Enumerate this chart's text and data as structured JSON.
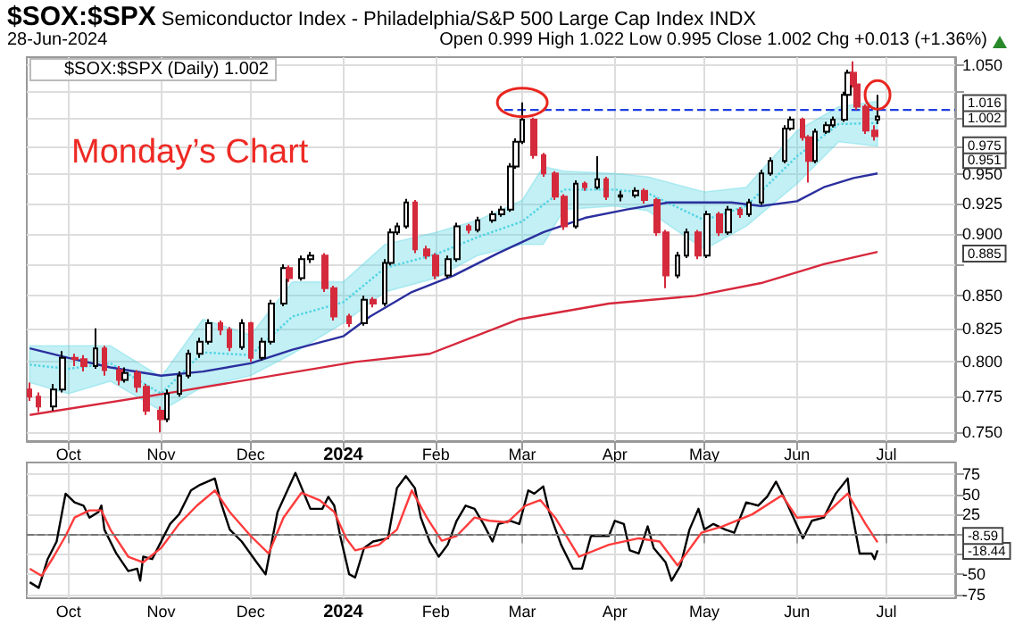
{
  "chart_data": [
    {
      "type": "candlestick",
      "title": "$SOX:$SPX Semiconductor Index - Philadelphia/S&P 500 Large Cap Index INDX",
      "annotations": [
        "28-Jun-2024",
        "Open 0.999 High 1.022 Low 0.995 Close 1.002 Chg +0.013 (+1.36%)",
        "Monday’s Chart",
        "1.016",
        "1.002",
        "0.975",
        "0.951",
        "0.885"
      ],
      "series": [
        {
          "name": "$SOX:$SPX (Daily) 1.002",
          "type": "candlestick",
          "x": [
            "2023-09-18",
            "2023-09-21",
            "2023-09-26",
            "2023-09-29",
            "2023-10-03",
            "2023-10-06",
            "2023-10-10",
            "2023-10-13",
            "2023-10-18",
            "2023-10-20",
            "2023-10-24",
            "2023-10-27",
            "2023-11-01",
            "2023-11-03",
            "2023-11-07",
            "2023-11-10",
            "2023-11-14",
            "2023-11-17",
            "2023-11-21",
            "2023-11-24",
            "2023-11-28",
            "2023-12-01",
            "2023-12-05",
            "2023-12-08",
            "2023-12-12",
            "2023-12-14",
            "2023-12-18",
            "2023-12-21",
            "2023-12-26",
            "2023-12-29",
            "2024-01-03",
            "2024-01-08",
            "2024-01-11",
            "2024-01-15",
            "2024-01-17",
            "2024-01-19",
            "2024-01-22",
            "2024-01-25",
            "2024-01-29",
            "2024-02-01",
            "2024-02-05",
            "2024-02-08",
            "2024-02-12",
            "2024-02-15",
            "2024-02-20",
            "2024-02-23",
            "2024-02-26",
            "2024-02-28",
            "2024-03-01",
            "2024-03-05",
            "2024-03-08",
            "2024-03-12",
            "2024-03-15",
            "2024-03-19",
            "2024-03-22",
            "2024-03-26",
            "2024-03-29",
            "2024-04-03",
            "2024-04-08",
            "2024-04-11",
            "2024-04-15",
            "2024-04-18",
            "2024-04-22",
            "2024-04-25",
            "2024-04-29",
            "2024-05-02",
            "2024-05-06",
            "2024-05-09",
            "2024-05-13",
            "2024-05-16",
            "2024-05-20",
            "2024-05-23",
            "2024-05-28",
            "2024-05-30",
            "2024-06-03",
            "2024-06-05",
            "2024-06-07",
            "2024-06-11",
            "2024-06-13",
            "2024-06-17",
            "2024-06-18",
            "2024-06-20",
            "2024-06-21",
            "2024-06-24",
            "2024-06-27",
            "2024-06-28"
          ],
          "ohlc": [
            [
              0.78,
              0.785,
              0.772,
              0.775
            ],
            [
              0.775,
              0.778,
              0.764,
              0.768
            ],
            [
              0.768,
              0.784,
              0.765,
              0.78
            ],
            [
              0.78,
              0.808,
              0.778,
              0.803
            ],
            [
              0.803,
              0.806,
              0.797,
              0.802
            ],
            [
              0.802,
              0.805,
              0.793,
              0.797
            ],
            [
              0.797,
              0.825,
              0.795,
              0.81
            ],
            [
              0.81,
              0.812,
              0.79,
              0.794
            ],
            [
              0.794,
              0.797,
              0.783,
              0.787
            ],
            [
              0.787,
              0.796,
              0.785,
              0.792
            ],
            [
              0.792,
              0.794,
              0.778,
              0.782
            ],
            [
              0.782,
              0.784,
              0.762,
              0.765
            ],
            [
              0.765,
              0.768,
              0.75,
              0.759
            ],
            [
              0.759,
              0.78,
              0.757,
              0.777
            ],
            [
              0.777,
              0.793,
              0.775,
              0.79
            ],
            [
              0.79,
              0.809,
              0.788,
              0.806
            ],
            [
              0.806,
              0.818,
              0.803,
              0.815
            ],
            [
              0.815,
              0.832,
              0.813,
              0.829
            ],
            [
              0.829,
              0.831,
              0.82,
              0.824
            ],
            [
              0.824,
              0.826,
              0.808,
              0.811
            ],
            [
              0.811,
              0.832,
              0.809,
              0.829
            ],
            [
              0.829,
              0.83,
              0.8,
              0.803
            ],
            [
              0.803,
              0.818,
              0.801,
              0.815
            ],
            [
              0.815,
              0.847,
              0.813,
              0.844
            ],
            [
              0.844,
              0.875,
              0.842,
              0.872
            ],
            [
              0.872,
              0.874,
              0.861,
              0.864
            ],
            [
              0.864,
              0.882,
              0.862,
              0.879
            ],
            [
              0.879,
              0.885,
              0.876,
              0.882
            ],
            [
              0.882,
              0.884,
              0.853,
              0.856
            ],
            [
              0.856,
              0.858,
              0.831,
              0.834
            ],
            [
              0.834,
              0.836,
              0.826,
              0.829
            ],
            [
              0.829,
              0.85,
              0.827,
              0.847
            ],
            [
              0.847,
              0.849,
              0.841,
              0.844
            ],
            [
              0.844,
              0.879,
              0.842,
              0.876
            ],
            [
              0.876,
              0.904,
              0.874,
              0.901
            ],
            [
              0.901,
              0.909,
              0.899,
              0.906
            ],
            [
              0.906,
              0.929,
              0.904,
              0.926
            ],
            [
              0.926,
              0.928,
              0.884,
              0.887
            ],
            [
              0.887,
              0.89,
              0.879,
              0.882
            ],
            [
              0.882,
              0.884,
              0.863,
              0.866
            ],
            [
              0.866,
              0.882,
              0.864,
              0.879
            ],
            [
              0.879,
              0.909,
              0.877,
              0.906
            ],
            [
              0.906,
              0.908,
              0.9,
              0.903
            ],
            [
              0.903,
              0.914,
              0.901,
              0.911
            ],
            [
              0.911,
              0.919,
              0.909,
              0.916
            ],
            [
              0.916,
              0.923,
              0.914,
              0.92
            ],
            [
              0.92,
              0.96,
              0.918,
              0.957
            ],
            [
              0.957,
              0.982,
              0.955,
              0.979
            ],
            [
              0.979,
              1.015,
              0.977,
              0.999
            ],
            [
              0.999,
              1.001,
              0.964,
              0.967
            ],
            [
              0.967,
              0.969,
              0.948,
              0.951
            ],
            [
              0.951,
              0.953,
              0.928,
              0.931
            ],
            [
              0.931,
              0.933,
              0.903,
              0.906
            ],
            [
              0.906,
              0.945,
              0.904,
              0.942
            ],
            [
              0.942,
              0.944,
              0.936,
              0.939
            ],
            [
              0.939,
              0.966,
              0.937,
              0.946
            ],
            [
              0.946,
              0.948,
              0.928,
              0.931
            ],
            [
              0.931,
              0.936,
              0.927,
              0.932
            ],
            [
              0.932,
              0.939,
              0.93,
              0.936
            ],
            [
              0.936,
              0.938,
              0.925,
              0.928
            ],
            [
              0.928,
              0.93,
              0.898,
              0.901
            ],
            [
              0.901,
              0.903,
              0.856,
              0.866
            ],
            [
              0.866,
              0.885,
              0.864,
              0.882
            ],
            [
              0.882,
              0.904,
              0.88,
              0.901
            ],
            [
              0.901,
              0.903,
              0.879,
              0.882
            ],
            [
              0.882,
              0.919,
              0.88,
              0.916
            ],
            [
              0.916,
              0.918,
              0.898,
              0.901
            ],
            [
              0.901,
              0.923,
              0.899,
              0.92
            ],
            [
              0.92,
              0.922,
              0.913,
              0.916
            ],
            [
              0.916,
              0.929,
              0.914,
              0.926
            ],
            [
              0.926,
              0.954,
              0.924,
              0.951
            ],
            [
              0.951,
              0.965,
              0.949,
              0.962
            ],
            [
              0.962,
              0.994,
              0.96,
              0.991
            ],
            [
              0.991,
              1.002,
              0.989,
              0.999
            ],
            [
              0.999,
              1.001,
              0.98,
              0.983
            ],
            [
              0.983,
              0.985,
              0.943,
              0.962
            ],
            [
              0.962,
              0.991,
              0.96,
              0.988
            ],
            [
              0.988,
              0.997,
              0.986,
              0.994
            ],
            [
              0.994,
              1.002,
              0.992,
              0.999
            ],
            [
              0.999,
              1.025,
              0.997,
              1.022
            ],
            [
              1.022,
              1.046,
              1.02,
              1.043
            ],
            [
              1.043,
              1.054,
              1.029,
              1.032
            ],
            [
              1.032,
              1.034,
              1.008,
              1.011
            ],
            [
              1.011,
              1.013,
              0.986,
              0.989
            ],
            [
              0.989,
              0.994,
              0.98,
              0.984
            ],
            [
              0.999,
              1.022,
              0.995,
              1.002
            ]
          ],
          "colors": [
            "#d42a3c",
            "#d42a3c",
            "#000000",
            "#000000",
            "#d42a3c",
            "#d42a3c",
            "#000000",
            "#d42a3c",
            "#d42a3c",
            "#000000",
            "#d42a3c",
            "#d42a3c",
            "#d42a3c",
            "#000000",
            "#000000",
            "#000000",
            "#000000",
            "#000000",
            "#d42a3c",
            "#d42a3c",
            "#000000",
            "#d42a3c",
            "#000000",
            "#000000",
            "#000000",
            "#d42a3c",
            "#000000",
            "#000000",
            "#d42a3c",
            "#d42a3c",
            "#d42a3c",
            "#000000",
            "#d42a3c",
            "#000000",
            "#000000",
            "#000000",
            "#000000",
            "#d42a3c",
            "#d42a3c",
            "#d42a3c",
            "#000000",
            "#000000",
            "#d42a3c",
            "#000000",
            "#000000",
            "#000000",
            "#000000",
            "#000000",
            "#000000",
            "#d42a3c",
            "#d42a3c",
            "#d42a3c",
            "#d42a3c",
            "#000000",
            "#d42a3c",
            "#000000",
            "#d42a3c",
            "#000000",
            "#000000",
            "#d42a3c",
            "#d42a3c",
            "#d42a3c",
            "#000000",
            "#000000",
            "#d42a3c",
            "#000000",
            "#d42a3c",
            "#000000",
            "#d42a3c",
            "#000000",
            "#000000",
            "#000000",
            "#000000",
            "#000000",
            "#d42a3c",
            "#d42a3c",
            "#000000",
            "#000000",
            "#000000",
            "#000000",
            "#000000",
            "#d42a3c",
            "#d42a3c",
            "#d42a3c",
            "#d42a3c",
            "#000000"
          ]
        },
        {
          "type": "line",
          "color": "#4fd3e3",
          "line_style": "dotted",
          "x": [
            "2023-09-18",
            "2023-10-01",
            "2023-10-15",
            "2023-11-01",
            "2023-11-15",
            "2023-12-01",
            "2023-12-15",
            "2024-01-01",
            "2024-01-15",
            "2024-02-01",
            "2024-02-15",
            "2024-03-01",
            "2024-03-08",
            "2024-03-15",
            "2024-04-01",
            "2024-04-12",
            "2024-05-01",
            "2024-05-15",
            "2024-06-01",
            "2024-06-15",
            "2024-06-28"
          ],
          "values": [
            0.798,
            0.795,
            0.799,
            0.777,
            0.807,
            0.805,
            0.834,
            0.845,
            0.872,
            0.883,
            0.897,
            0.91,
            0.924,
            0.937,
            0.937,
            0.934,
            0.911,
            0.923,
            0.966,
            0.995,
            0.996
          ],
          "lower": [
            0.785,
            0.777,
            0.786,
            0.765,
            0.782,
            0.79,
            0.806,
            0.829,
            0.853,
            0.864,
            0.882,
            0.891,
            0.891,
            0.92,
            0.923,
            0.919,
            0.887,
            0.906,
            0.942,
            0.979,
            0.975
          ],
          "upper": [
            0.812,
            0.812,
            0.812,
            0.789,
            0.832,
            0.82,
            0.861,
            0.861,
            0.891,
            0.901,
            0.911,
            0.928,
            0.957,
            0.953,
            0.951,
            0.948,
            0.935,
            0.939,
            0.989,
            1.011,
            1.016
          ]
        },
        {
          "type": "line",
          "color": "#2b2f9e",
          "x": [
            "2023-09-18",
            "2023-10-01",
            "2023-10-15",
            "2023-11-01",
            "2023-11-15",
            "2023-12-01",
            "2023-12-15",
            "2024-01-01",
            "2024-01-10",
            "2024-01-24",
            "2024-02-07",
            "2024-02-22",
            "2024-03-08",
            "2024-03-22",
            "2024-04-05",
            "2024-04-19",
            "2024-05-10",
            "2024-05-20",
            "2024-06-01",
            "2024-06-10",
            "2024-06-20",
            "2024-06-28"
          ],
          "values": [
            0.81,
            0.803,
            0.796,
            0.79,
            0.793,
            0.799,
            0.809,
            0.819,
            0.834,
            0.853,
            0.866,
            0.884,
            0.901,
            0.913,
            0.92,
            0.926,
            0.926,
            0.923,
            0.927,
            0.939,
            0.947,
            0.951
          ]
        },
        {
          "type": "line",
          "color": "#d6283c",
          "x": [
            "2023-09-18",
            "2023-11-05",
            "2024-01-05",
            "2024-01-30",
            "2024-02-29",
            "2024-03-30",
            "2024-04-28",
            "2024-05-20",
            "2024-06-10",
            "2024-06-28"
          ],
          "values": [
            0.762,
            0.778,
            0.8,
            0.806,
            0.832,
            0.844,
            0.85,
            0.86,
            0.875,
            0.885
          ]
        },
        {
          "type": "line",
          "color": "#1f3fe0",
          "line_style": "dashed",
          "x": [
            "2024-02-24",
            "2024-07-24"
          ],
          "values": [
            1.008,
            1.008
          ]
        }
      ],
      "xlim": [
        "2023-09-17",
        "2024-07-24"
      ],
      "xticks": [
        {
          "value": "2023-10-01",
          "label": "Oct"
        },
        {
          "value": "2023-11-01",
          "label": "Nov"
        },
        {
          "value": "2023-12-01",
          "label": "Dec"
        },
        {
          "value": "2024-01-01",
          "label": "2024"
        },
        {
          "value": "2024-02-01",
          "label": "Feb"
        },
        {
          "value": "2024-03-01",
          "label": "Mar"
        },
        {
          "value": "2024-04-01",
          "label": "Apr"
        },
        {
          "value": "2024-05-01",
          "label": "May"
        },
        {
          "value": "2024-06-01",
          "label": "Jun"
        },
        {
          "value": "2024-07-01",
          "label": "Jul"
        }
      ],
      "ylim": [
        0.744,
        1.058
      ],
      "yticks": [
        {
          "value": 0.75,
          "label": "0.750"
        },
        {
          "value": 0.775,
          "label": "0.775"
        },
        {
          "value": 0.8,
          "label": "0.800"
        },
        {
          "value": 0.825,
          "label": "0.825"
        },
        {
          "value": 0.85,
          "label": "0.850"
        },
        {
          "value": 0.875,
          "label": null
        },
        {
          "value": 0.9,
          "label": "0.900"
        },
        {
          "value": 0.925,
          "label": "0.925"
        },
        {
          "value": 0.95,
          "label": "0.950"
        },
        {
          "value": 0.975,
          "label": null
        },
        {
          "value": 1.0,
          "label": null
        },
        {
          "value": 1.025,
          "label": null
        },
        {
          "value": 1.05,
          "label": "1.050"
        }
      ],
      "log": true,
      "grid": true,
      "legend": "top left",
      "marker": "none"
    },
    {
      "type": "line",
      "annotations": [
        "-8.59",
        "-18.44"
      ],
      "series": [
        {
          "color": "#000000",
          "x": [
            "2023-09-18",
            "2023-09-21",
            "2023-09-24",
            "2023-09-27",
            "2023-09-30",
            "2023-10-03",
            "2023-10-06",
            "2023-10-08",
            "2023-10-11",
            "2023-10-12",
            "2023-10-13",
            "2023-10-17",
            "2023-10-21",
            "2023-10-24",
            "2023-10-25",
            "2023-10-26",
            "2023-10-29",
            "2023-11-04",
            "2023-11-07",
            "2023-11-11",
            "2023-11-14",
            "2023-11-19",
            "2023-11-21",
            "2023-11-24",
            "2023-11-28",
            "2023-12-03",
            "2023-12-06",
            "2023-12-10",
            "2023-12-16",
            "2023-12-21",
            "2023-12-25",
            "2023-12-27",
            "2023-12-29",
            "2023-12-31",
            "2024-01-03",
            "2024-01-05",
            "2024-01-08",
            "2024-01-11",
            "2024-01-16",
            "2024-01-19",
            "2024-01-22",
            "2024-01-25",
            "2024-01-27",
            "2024-01-30",
            "2024-02-02",
            "2024-02-05",
            "2024-02-08",
            "2024-02-11",
            "2024-02-14",
            "2024-02-17",
            "2024-02-20",
            "2024-02-22",
            "2024-02-26",
            "2024-02-29",
            "2024-03-03",
            "2024-03-05",
            "2024-03-08",
            "2024-03-10",
            "2024-03-14",
            "2024-03-18",
            "2024-03-21",
            "2024-03-24",
            "2024-03-30",
            "2024-04-01",
            "2024-04-04",
            "2024-04-06",
            "2024-04-09",
            "2024-04-12",
            "2024-04-14",
            "2024-04-18",
            "2024-04-20",
            "2024-04-23",
            "2024-04-26",
            "2024-04-29",
            "2024-05-01",
            "2024-05-04",
            "2024-05-08",
            "2024-05-11",
            "2024-05-15",
            "2024-05-19",
            "2024-05-22",
            "2024-05-25",
            "2024-05-29",
            "2024-06-03",
            "2024-06-06",
            "2024-06-10",
            "2024-06-14",
            "2024-06-18",
            "2024-06-19",
            "2024-06-22",
            "2024-06-26",
            "2024-06-27",
            "2024-06-28"
          ],
          "values": [
            -60,
            -67,
            -31,
            -9,
            51,
            40,
            36,
            21,
            28,
            36,
            6,
            -24,
            -46,
            -43,
            -58,
            -28,
            -31,
            13,
            25,
            55,
            62,
            70,
            40,
            6,
            -9,
            -35,
            -50,
            28,
            77,
            32,
            32,
            47,
            36,
            -2,
            -50,
            -54,
            -17,
            -9,
            -5,
            58,
            73,
            58,
            21,
            -9,
            -28,
            -13,
            17,
            36,
            32,
            13,
            -9,
            13,
            17,
            13,
            55,
            51,
            60,
            28,
            -13,
            -43,
            -43,
            -2,
            -2,
            17,
            13,
            -20,
            -24,
            10,
            -17,
            -35,
            -58,
            -39,
            6,
            32,
            6,
            13,
            6,
            2,
            40,
            36,
            47,
            66,
            36,
            -5,
            17,
            21,
            51,
            70,
            36,
            -24,
            -24,
            -31,
            -20
          ]
        },
        {
          "color": "#ff3b3b",
          "x": [
            "2023-09-18",
            "2023-09-22",
            "2023-09-26",
            "2023-09-30",
            "2023-10-03",
            "2023-10-08",
            "2023-10-12",
            "2023-10-15",
            "2023-10-21",
            "2023-10-26",
            "2023-11-01",
            "2023-11-07",
            "2023-11-13",
            "2023-11-19",
            "2023-11-24",
            "2023-12-01",
            "2023-12-07",
            "2023-12-12",
            "2023-12-18",
            "2023-12-24",
            "2023-12-29",
            "2024-01-02",
            "2024-01-05",
            "2024-01-13",
            "2024-01-19",
            "2024-01-24",
            "2024-01-29",
            "2024-02-03",
            "2024-02-08",
            "2024-02-14",
            "2024-02-19",
            "2024-02-25",
            "2024-03-02",
            "2024-03-07",
            "2024-03-12",
            "2024-03-20",
            "2024-03-30",
            "2024-04-09",
            "2024-04-16",
            "2024-04-22",
            "2024-04-30",
            "2024-05-07",
            "2024-05-17",
            "2024-05-27",
            "2024-06-01",
            "2024-06-10",
            "2024-06-18",
            "2024-06-24",
            "2024-06-28"
          ],
          "values": [
            -43,
            -52,
            -28,
            -2,
            21,
            30,
            30,
            6,
            -28,
            -35,
            -17,
            13,
            36,
            55,
            28,
            -2,
            -24,
            21,
            52,
            43,
            28,
            -5,
            -20,
            -13,
            6,
            55,
            21,
            -8,
            -2,
            21,
            17,
            15,
            36,
            43,
            21,
            -28,
            -13,
            -5,
            -9,
            -39,
            2,
            10,
            25,
            49,
            21,
            23,
            51,
            13,
            -10
          ]
        }
      ],
      "ref_lines": [
        {
          "axis": "y",
          "value": 0,
          "color": "#777777",
          "line_style": "dashed"
        }
      ],
      "xlim": [
        "2023-09-17",
        "2024-07-24"
      ],
      "xticks": [
        {
          "value": "2023-10-01",
          "label": "Oct"
        },
        {
          "value": "2023-11-01",
          "label": "Nov"
        },
        {
          "value": "2023-12-01",
          "label": "Dec"
        },
        {
          "value": "2024-01-01",
          "label": "2024"
        },
        {
          "value": "2024-02-01",
          "label": "Feb"
        },
        {
          "value": "2024-03-01",
          "label": "Mar"
        },
        {
          "value": "2024-04-01",
          "label": "Apr"
        },
        {
          "value": "2024-05-01",
          "label": "May"
        },
        {
          "value": "2024-06-01",
          "label": "Jun"
        },
        {
          "value": "2024-07-01",
          "label": "Jul"
        }
      ],
      "ylim": [
        -80,
        90
      ],
      "yticks": [
        -75,
        -50,
        {
          "value": -25,
          "label": null
        },
        {
          "value": 0,
          "label": null
        },
        25,
        50,
        75
      ],
      "grid": true,
      "marker": "none"
    }
  ]
}
